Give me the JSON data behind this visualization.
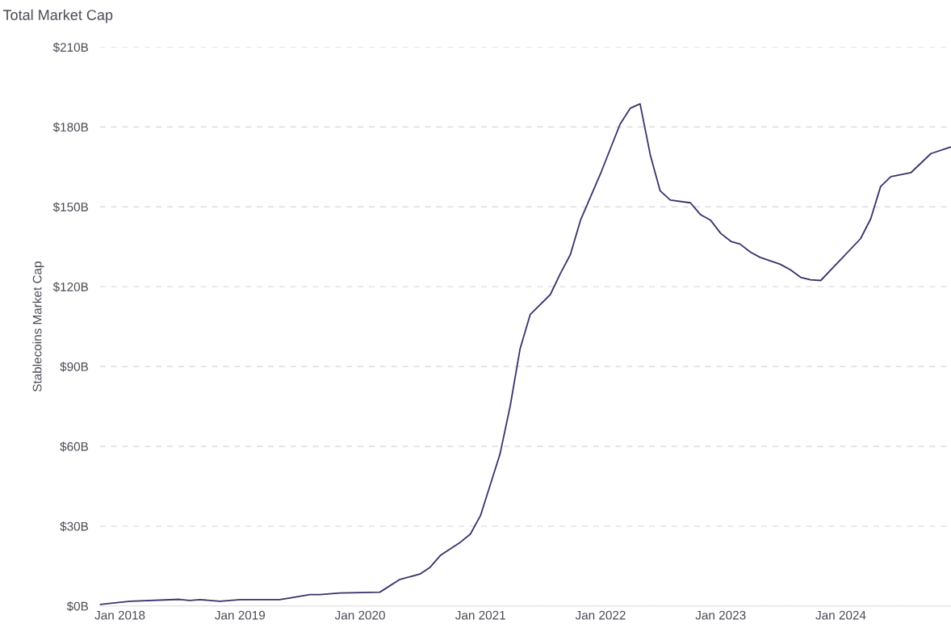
{
  "chart_data": {
    "type": "line",
    "title": "Total Market Cap",
    "ylabel": "Stablecoins Market Cap",
    "x": [
      "2017-11",
      "2018-02",
      "2018-07",
      "2018-08",
      "2018-09",
      "2018-11",
      "2019-01",
      "2019-05",
      "2019-06",
      "2019-08",
      "2019-09",
      "2019-11",
      "2020-03",
      "2020-05",
      "2020-07",
      "2020-08",
      "2020-09",
      "2020-11",
      "2020-12",
      "2021-01",
      "2021-03",
      "2021-04",
      "2021-05",
      "2021-06",
      "2021-08",
      "2021-09",
      "2021-10",
      "2021-11",
      "2022-01",
      "2022-03",
      "2022-04",
      "2022-05",
      "2022-06",
      "2022-07",
      "2022-08",
      "2022-10",
      "2022-11",
      "2022-12",
      "2023-01",
      "2023-02",
      "2023-03",
      "2023-04",
      "2023-05",
      "2023-07",
      "2023-08",
      "2023-09",
      "2023-10",
      "2023-11",
      "2024-03",
      "2024-04",
      "2024-05",
      "2024-06",
      "2024-08",
      "2024-10",
      "2024-12"
    ],
    "series": [
      {
        "color": "#35336b",
        "values": [
          0.6,
          1.8,
          2.5,
          2.1,
          2.4,
          1.8,
          2.4,
          2.4,
          3,
          4.3,
          4.3,
          4.9,
          5.2,
          10,
          12,
          14.6,
          19,
          24,
          27,
          34,
          57,
          75,
          96.5,
          109.5,
          117,
          125,
          132,
          145,
          162.5,
          181,
          187,
          188.7,
          169.5,
          156,
          152.5,
          151.5,
          147,
          145,
          140,
          137,
          136,
          133,
          131,
          128.4,
          126.3,
          123.5,
          122.6,
          122.3,
          138,
          145.5,
          157.6,
          161.3,
          162.8,
          170,
          172.5
        ]
      }
    ],
    "xlim": [
      "2017-11",
      "2024-12"
    ],
    "xticks": [
      {
        "value": "2018-01",
        "label": "Jan 2018"
      },
      {
        "value": "2019-01",
        "label": "Jan 2019"
      },
      {
        "value": "2020-01",
        "label": "Jan 2020"
      },
      {
        "value": "2021-01",
        "label": "Jan 2021"
      },
      {
        "value": "2022-01",
        "label": "Jan 2022"
      },
      {
        "value": "2023-01",
        "label": "Jan 2023"
      },
      {
        "value": "2024-01",
        "label": "Jan 2024"
      }
    ],
    "ylim": [
      0,
      210
    ],
    "yticks": [
      {
        "value": 0,
        "label": "$0B"
      },
      {
        "value": 30,
        "label": "$30B"
      },
      {
        "value": 60,
        "label": "$60B"
      },
      {
        "value": 90,
        "label": "$90B"
      },
      {
        "value": 120,
        "label": "$120B"
      },
      {
        "value": 150,
        "label": "$150B"
      },
      {
        "value": 180,
        "label": "$180B"
      },
      {
        "value": 210,
        "label": "$210B"
      }
    ],
    "grid": "y",
    "legend": false,
    "marker": "none",
    "line_style": "solid"
  }
}
